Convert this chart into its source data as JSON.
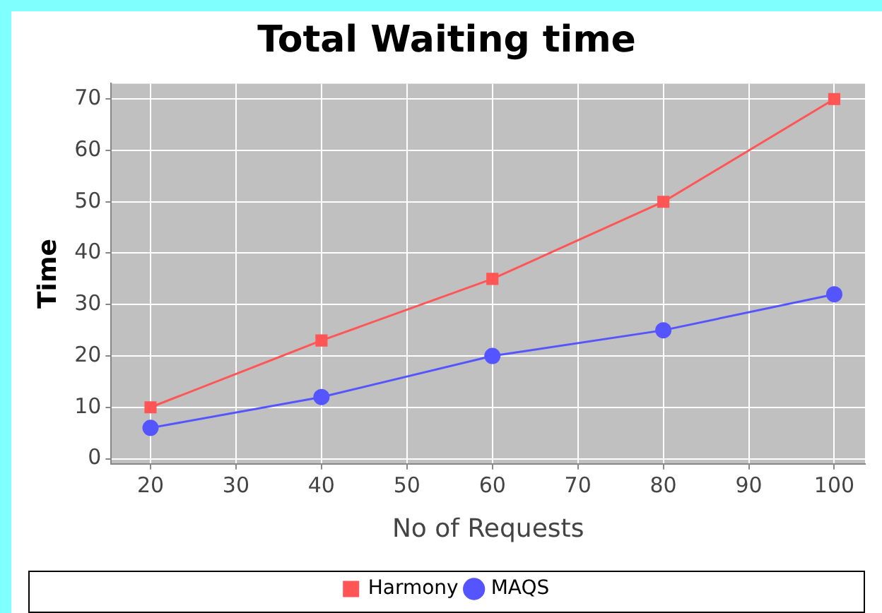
{
  "chart_data": {
    "type": "line",
    "title": "Total Waiting time",
    "xlabel": "No of Requests",
    "ylabel": "Time",
    "x": [
      20,
      40,
      60,
      80,
      100
    ],
    "series": [
      {
        "name": "Harmony",
        "color": "#ff5555",
        "values": [
          10,
          23,
          35,
          50,
          70
        ],
        "marker": "square"
      },
      {
        "name": "MAQS",
        "color": "#5555ff",
        "values": [
          6,
          12,
          20,
          25,
          32
        ],
        "marker": "circle"
      }
    ],
    "xlim": [
      15.4,
      103.6
    ],
    "xticks": [
      20,
      30,
      40,
      50,
      60,
      70,
      80,
      90,
      100
    ],
    "ylim": [
      -1,
      73
    ],
    "yticks": [
      0,
      10,
      20,
      30,
      40,
      50,
      60,
      70
    ],
    "grid": true,
    "legend": "bottom",
    "line_style": "solid"
  }
}
